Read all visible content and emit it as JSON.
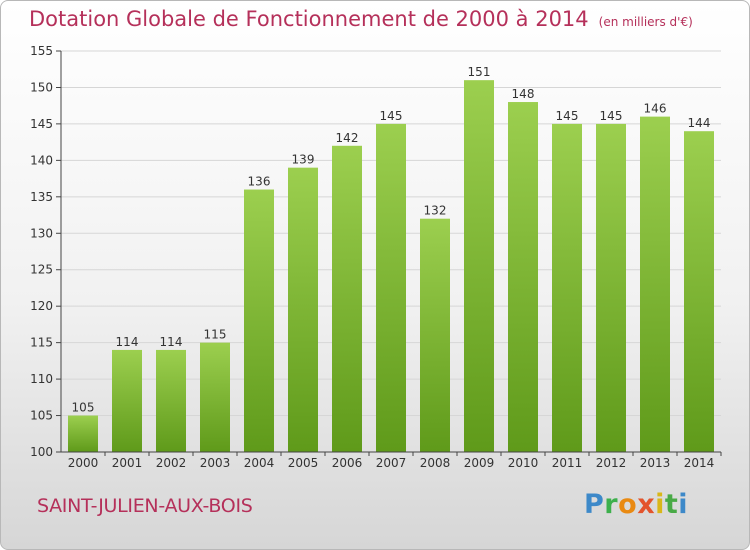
{
  "header": {
    "title": "Dotation Globale de Fonctionnement de 2000 à 2014",
    "unit": "(en milliers d'€)"
  },
  "commune": "SAINT-JULIEN-AUX-BOIS",
  "logo": {
    "letters": [
      "P",
      "r",
      "o",
      "x",
      "i",
      "t",
      "i"
    ],
    "colors": [
      "#3d89c9",
      "#3db04c",
      "#e98a12",
      "#e3542c",
      "#d9b719",
      "#49aa46",
      "#3d89c9"
    ]
  },
  "chart_data": {
    "type": "bar",
    "categories": [
      "2000",
      "2001",
      "2002",
      "2003",
      "2004",
      "2005",
      "2006",
      "2007",
      "2008",
      "2009",
      "2010",
      "2011",
      "2012",
      "2013",
      "2014"
    ],
    "values": [
      105,
      114,
      114,
      115,
      136,
      139,
      142,
      145,
      132,
      151,
      148,
      145,
      145,
      146,
      144
    ],
    "title": "Dotation Globale de Fonctionnement de 2000 à 2014",
    "subtitle": "(en milliers d'€)",
    "xlabel": "",
    "ylabel": "",
    "ylim": [
      100,
      155
    ],
    "yticks": [
      100,
      105,
      110,
      115,
      120,
      125,
      130,
      135,
      140,
      145,
      150,
      155
    ],
    "grid": true,
    "data_labels": true,
    "colors": {
      "bar_light": "#9ccf4f",
      "bar_dark": "#5f9a1a",
      "grid": "#d6d6d6",
      "axis": "#444444"
    }
  }
}
